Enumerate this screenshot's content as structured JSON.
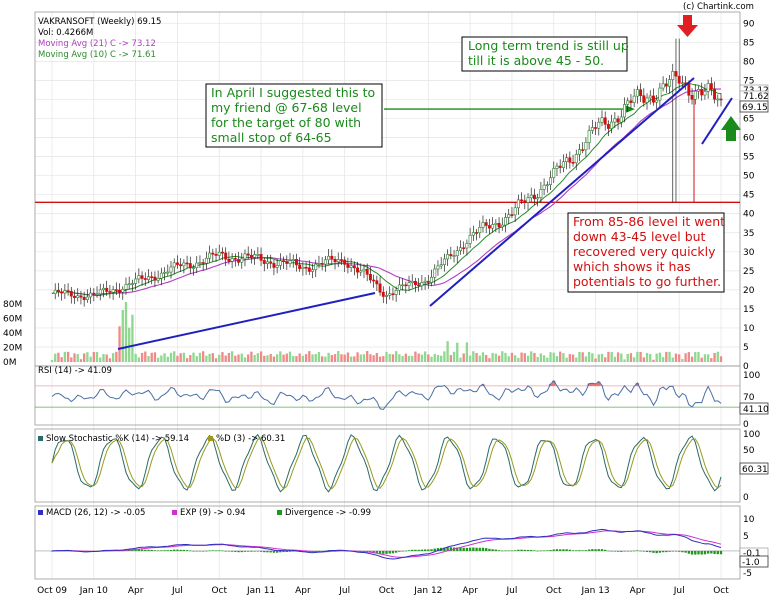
{
  "header": {
    "credit": "(c) Chartink.com"
  },
  "colors": {
    "up": "#2a7a2a",
    "down": "#d01010",
    "sma21": "#b040c0",
    "sma10": "#2a8a2a",
    "trend": "#2020c0",
    "support": "#d01010",
    "level": "#1a8a1a",
    "rsi": "#4a6fa5",
    "rsi_fill": "#f07070",
    "stoch_k": "#2a6a6a",
    "stoch_d": "#9a9a20",
    "macd": "#3030c0",
    "exp": "#d030d0",
    "divergence": "#1a9a1a"
  },
  "chart_data": [
    {
      "type": "candlestick",
      "title": "VAKRANSOFT (Weekly) 69.15",
      "legend": [
        "VAKRANSOFT (Weekly) 69.15",
        "Vol: 0.4266M",
        "Moving Avg (21) C -> 73.12",
        "Moving Avg (10) C -> 71.61"
      ],
      "x_tick_labels": [
        "Oct 09",
        "Jan 10",
        "Apr",
        "Jul",
        "Oct",
        "Jan 11",
        "Apr",
        "Jul",
        "Oct",
        "Jan 12",
        "Apr",
        "Jul",
        "Oct",
        "Jan 13",
        "Apr",
        "Jul",
        "Oct"
      ],
      "x_period": {
        "start": "2009-10",
        "end": "2013-10",
        "interval": "weekly"
      },
      "y_ticks": [
        0,
        5,
        10,
        15,
        20,
        25,
        30,
        35,
        40,
        45,
        50,
        55,
        60,
        65,
        70,
        75,
        80,
        85,
        90
      ],
      "ylim": [
        0,
        93
      ],
      "price_labels": {
        "ma21": "73.12",
        "ma10": "71.62",
        "last": "69.15"
      },
      "volume_ticks": [
        "80M",
        "60M",
        "40M",
        "20M",
        "0M"
      ],
      "volume_last_millions": 0.4266,
      "close_approx": [
        {
          "x": "2009-10",
          "y": 19
        },
        {
          "x": "2010-01",
          "y": 18.5
        },
        {
          "x": "2010-04",
          "y": 22
        },
        {
          "x": "2010-07",
          "y": 26
        },
        {
          "x": "2010-10",
          "y": 29
        },
        {
          "x": "2011-01",
          "y": 28
        },
        {
          "x": "2011-04",
          "y": 26
        },
        {
          "x": "2011-07",
          "y": 28
        },
        {
          "x": "2011-10",
          "y": 19
        },
        {
          "x": "2012-01",
          "y": 23
        },
        {
          "x": "2012-04",
          "y": 34
        },
        {
          "x": "2012-07",
          "y": 40
        },
        {
          "x": "2012-10",
          "y": 50
        },
        {
          "x": "2013-01",
          "y": 62
        },
        {
          "x": "2013-04",
          "y": 70
        },
        {
          "x": "2013-07",
          "y": 75
        },
        {
          "x": "2013-10",
          "y": 69.15
        }
      ],
      "lows": [
        {
          "x": "2013-07",
          "y": 43
        }
      ],
      "highs": [
        {
          "x": "2013-07",
          "y": 86
        }
      ],
      "horizontal_lines": [
        {
          "label": "support",
          "y": 43
        },
        {
          "label": "67-68 level",
          "y": 67.5
        }
      ]
    },
    {
      "type": "line",
      "title": "RSI (14) -> 41.09",
      "y_ticks": [
        0,
        50,
        100
      ],
      "reference_levels": [
        70,
        30
      ],
      "last_label": "41.10",
      "ylim": [
        0,
        100
      ]
    },
    {
      "type": "line",
      "title": "Slow Stochastic %K (14) -> 59.14",
      "legend": [
        "Slow Stochastic %K (14) -> 59.14",
        "%D (3) -> 60.31"
      ],
      "y_ticks": [
        0,
        50,
        100
      ],
      "last_label": "60.31",
      "ylim": [
        0,
        100
      ]
    },
    {
      "type": "line",
      "title": "MACD (26, 12) -> -0.05",
      "legend": [
        "MACD (26, 12) -> -0.05",
        "EXP (9) -> 0.94",
        "Divergence -> -0.99"
      ],
      "y_ticks": [
        10,
        5,
        0,
        -5
      ],
      "last_labels": [
        "-0.1",
        "-1.0"
      ],
      "ylim": [
        -7,
        11
      ]
    }
  ],
  "annotations": {
    "long_term": [
      "Long term trend is still up",
      "till it is above 45 - 50."
    ],
    "april_note": [
      "In April I suggested this to",
      "my friend @ 67-68 level",
      "for the target of 80 with",
      "small stop of 64-65"
    ],
    "recovery_note": [
      "From 85-86 level it went",
      "down 43-45 level but",
      "recovered very quickly",
      "which shows it has",
      "potentials to go further."
    ]
  }
}
